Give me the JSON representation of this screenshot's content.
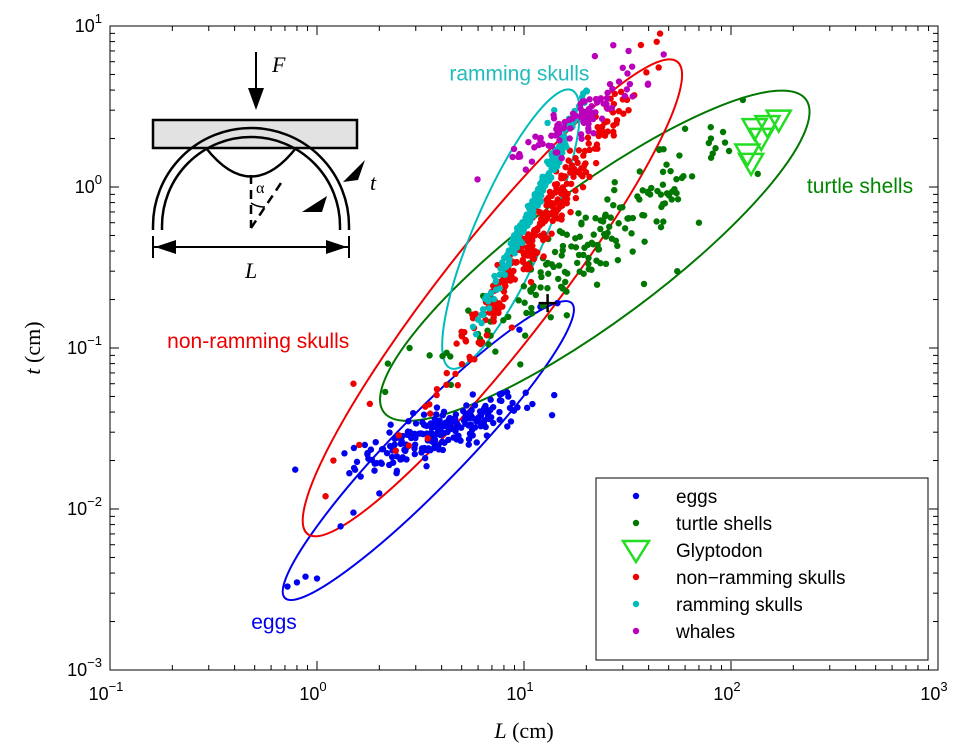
{
  "chart_data": {
    "type": "scatter",
    "title": "",
    "xlabel": "L (cm)",
    "ylabel": "t (cm)",
    "xlabel_var": "L",
    "xlabel_unit": "(cm)",
    "ylabel_var": "t",
    "ylabel_unit": "(cm)",
    "xscale": "log",
    "yscale": "log",
    "xlim": [
      0.1,
      1000
    ],
    "ylim": [
      0.001,
      10
    ],
    "grid": false,
    "legend_position": "lower-right",
    "xticks": [
      {
        "base": "10",
        "exp": "−1"
      },
      {
        "base": "10",
        "exp": "0"
      },
      {
        "base": "10",
        "exp": "1"
      },
      {
        "base": "10",
        "exp": "2"
      },
      {
        "base": "10",
        "exp": "3"
      }
    ],
    "yticks": [
      {
        "base": "10",
        "exp": "−3"
      },
      {
        "base": "10",
        "exp": "−2"
      },
      {
        "base": "10",
        "exp": "−1"
      },
      {
        "base": "10",
        "exp": "0"
      },
      {
        "base": "10",
        "exp": "1"
      }
    ],
    "series": [
      {
        "name": "eggs",
        "color": "#0000ee",
        "marker": "dot",
        "cloud": {
          "center": [
            3.9,
            0.03
          ],
          "spread_x": 0.2,
          "spread_y": 0.09,
          "n": 230
        },
        "points": [
          [
            0.72,
            0.0033
          ],
          [
            0.8,
            0.0035
          ],
          [
            0.88,
            0.0038
          ],
          [
            1.0,
            0.0037
          ],
          [
            1.3,
            0.0078
          ],
          [
            1.5,
            0.0095
          ],
          [
            2.0,
            0.0125
          ],
          [
            12.0,
            0.18
          ],
          [
            14.5,
            0.19
          ],
          [
            9.5,
            0.13
          ]
        ]
      },
      {
        "name": "turtle shells",
        "color": "#007700",
        "marker": "dot",
        "cloud": {
          "center": [
            22,
            0.45
          ],
          "spread_x": 0.35,
          "spread_y": 0.33,
          "n": 170
        },
        "points": [
          [
            2.2,
            0.08
          ],
          [
            2.8,
            0.1
          ],
          [
            3.5,
            0.09
          ],
          [
            5.0,
            0.12
          ],
          [
            60,
            2.3
          ],
          [
            80,
            2.0
          ],
          [
            45,
            1.7
          ],
          [
            70,
            0.6
          ],
          [
            55,
            0.3
          ],
          [
            38,
            0.25
          ]
        ]
      },
      {
        "name": "Glyptodon",
        "color": "#22dd22",
        "marker": "triangle-down",
        "points": [
          [
            120,
            1.6
          ],
          [
            130,
            2.3
          ],
          [
            140,
            2.0
          ],
          [
            150,
            2.4
          ],
          [
            170,
            2.6
          ],
          [
            125,
            1.4
          ]
        ]
      },
      {
        "name": "non−ramming skulls",
        "color": "#ee0000",
        "marker": "dot",
        "cloud": {
          "center": [
            12,
            0.55
          ],
          "spread_x": 0.24,
          "spread_y": 0.48,
          "n": 290
        },
        "points": [
          [
            1.1,
            0.012
          ],
          [
            1.2,
            0.02
          ],
          [
            1.6,
            0.025
          ],
          [
            1.8,
            0.045
          ],
          [
            1.5,
            0.06
          ],
          [
            30,
            3.5
          ],
          [
            32,
            3.0
          ],
          [
            27,
            2.2
          ]
        ]
      },
      {
        "name": "ramming skulls",
        "color": "#00bbbb",
        "marker": "dot",
        "cloud": {
          "center": [
            11,
            0.75
          ],
          "spread_x": 0.11,
          "spread_y": 0.3,
          "n": 230
        },
        "points": [
          [
            6.0,
            0.15
          ],
          [
            13,
            2.5
          ],
          [
            14,
            3.0
          ],
          [
            15,
            2.0
          ]
        ]
      },
      {
        "name": "whales",
        "color": "#bb00bb",
        "marker": "dot",
        "cloud": {
          "center": [
            18,
            2.6
          ],
          "spread_x": 0.16,
          "spread_y": 0.13,
          "n": 90
        },
        "points": [
          [
            27,
            7.6
          ],
          [
            32,
            7.0
          ],
          [
            22,
            6.5
          ],
          [
            30,
            5.5
          ],
          [
            9.5,
            1.6
          ],
          [
            10.5,
            1.9
          ]
        ]
      }
    ],
    "ellipses": [
      {
        "series": "eggs",
        "color": "#0000ee",
        "center_x": 4.0,
        "center_y": 0.025,
        "major_from": [
          0.7,
          0.0028
        ],
        "major_to": [
          17,
          0.19
        ],
        "minor_half": 0.17
      },
      {
        "series": "turtle shells",
        "color": "#007700",
        "center_x": 22,
        "center_y": 0.5,
        "major_from": [
          2.1,
          0.04
        ],
        "major_to": [
          230,
          3.5
        ],
        "minor_half": 0.32
      },
      {
        "series": "non−ramming skulls",
        "color": "#ee0000",
        "center_x": 9,
        "center_y": 0.5,
        "major_from": [
          0.9,
          0.007
        ],
        "major_to": [
          55,
          6.0
        ],
        "minor_half": 0.26
      },
      {
        "series": "ramming skulls",
        "color": "#00bbbb",
        "center_x": 12,
        "center_y": 0.7,
        "major_from": [
          4.4,
          0.075
        ],
        "major_to": [
          17,
          4.0
        ],
        "minor_half": 0.17
      }
    ],
    "annotations": [
      {
        "text": "ramming skulls",
        "color": "#22bbbb",
        "x": 9.5,
        "y": 4.6
      },
      {
        "text": "turtle shells",
        "color": "#008800",
        "x": 420,
        "y": 0.92
      },
      {
        "text": "non-ramming skulls",
        "color": "#ee0000",
        "x": 0.52,
        "y": 0.1
      },
      {
        "text": "eggs",
        "color": "#0000ee",
        "x": 0.62,
        "y": 0.0018
      }
    ],
    "marker_cross": {
      "x": 13,
      "y": 0.19,
      "color": "#000000"
    },
    "inset": {
      "force_label": "F",
      "thickness_label": "t",
      "angle_label": "α",
      "length_label": "L"
    }
  }
}
